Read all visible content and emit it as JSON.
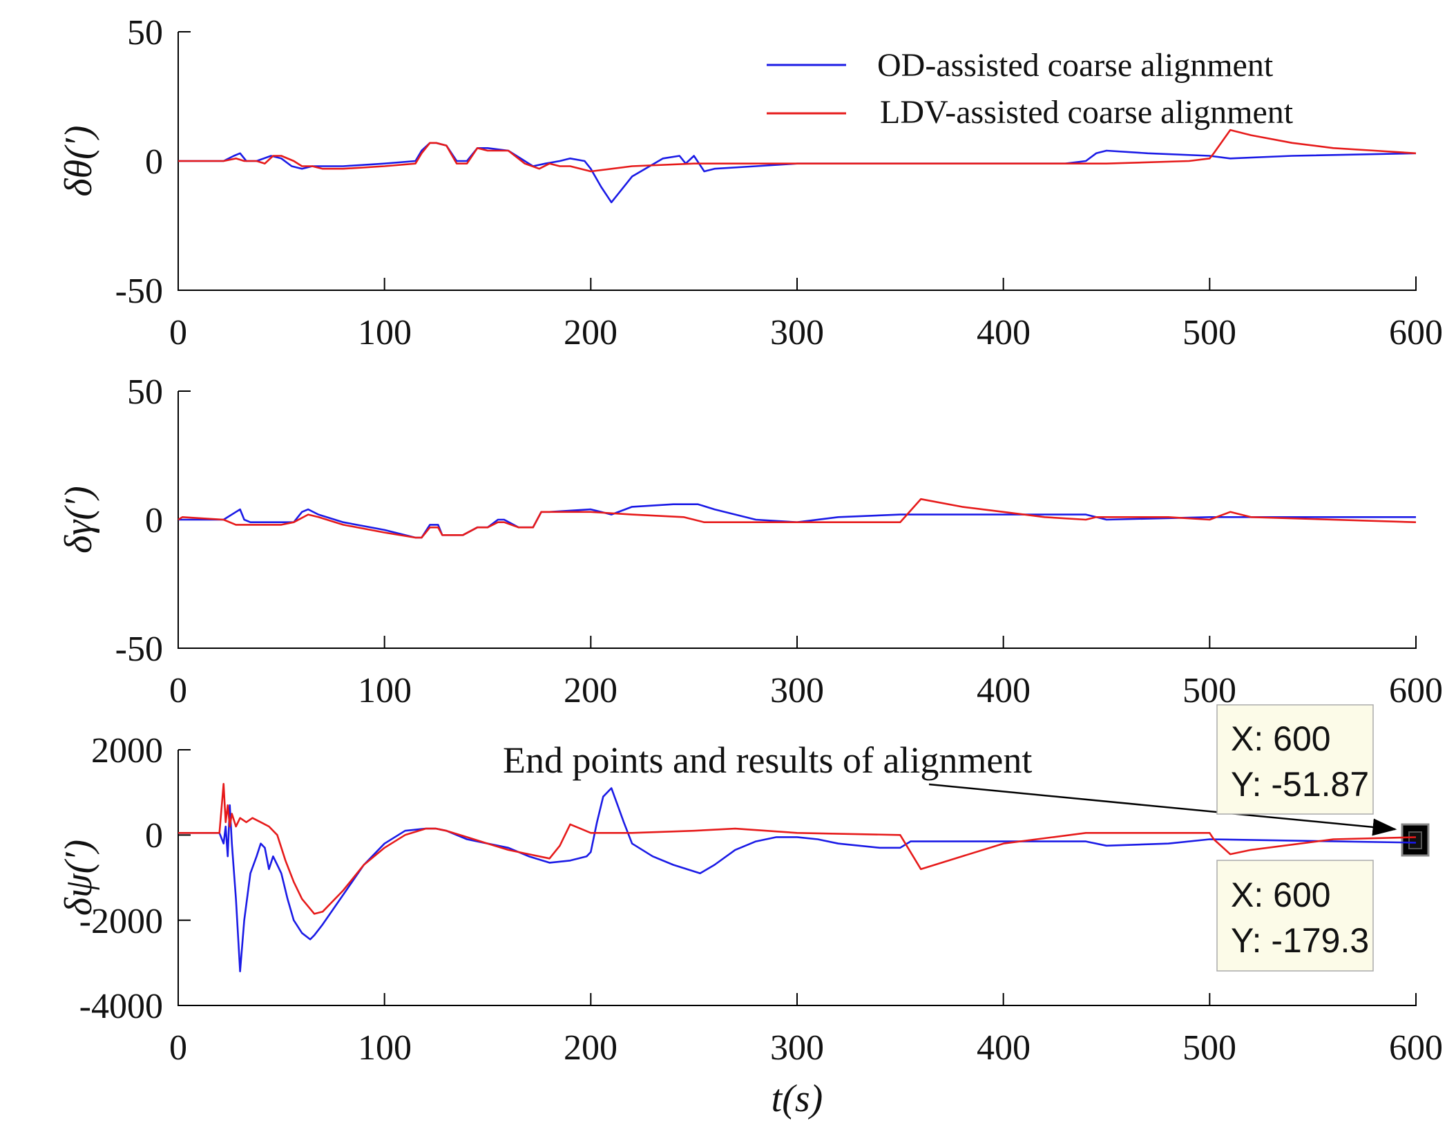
{
  "chart_data": [
    {
      "type": "line",
      "ylabel": "δθ(′)",
      "xlabel": "",
      "xlim": [
        0,
        600
      ],
      "ylim": [
        -50,
        50
      ],
      "xticks": [
        "0",
        "100",
        "200",
        "300",
        "400",
        "500",
        "600"
      ],
      "yticks": [
        "-50",
        "0",
        "50"
      ],
      "ytick_values": [
        -50,
        0,
        50
      ],
      "legend": {
        "position": "top-right",
        "entries": [
          "OD-assisted coarse alignment",
          "LDV-assisted coarse alignment"
        ]
      },
      "series": [
        {
          "name": "OD-assisted coarse alignment",
          "color": "#1a1ae6",
          "x": [
            0,
            22,
            27,
            30,
            33,
            38,
            45,
            50,
            55,
            60,
            65,
            70,
            80,
            100,
            115,
            118,
            122,
            125,
            130,
            135,
            140,
            145,
            150,
            160,
            168,
            172,
            178,
            185,
            190,
            197,
            200,
            205,
            210,
            220,
            235,
            243,
            246,
            250,
            255,
            260,
            280,
            300,
            320,
            350,
            380,
            400,
            430,
            440,
            445,
            450,
            470,
            500,
            510,
            540,
            600
          ],
          "y": [
            0,
            0,
            2,
            3,
            0,
            0,
            2,
            1,
            -2,
            -3,
            -2,
            -2,
            -2,
            -1,
            0,
            4,
            7,
            7,
            6,
            0,
            0,
            5,
            5,
            4,
            0,
            -2,
            -1,
            0,
            1,
            0,
            -3,
            -10,
            -16,
            -6,
            1,
            2,
            -1,
            2,
            -4,
            -3,
            -2,
            -1,
            -1,
            -1,
            -1,
            -1,
            -1,
            0,
            3,
            4,
            3,
            2,
            1,
            2,
            3
          ]
        },
        {
          "name": "LDV-assisted coarse alignment",
          "color": "#e61a1a",
          "x": [
            0,
            22,
            28,
            32,
            38,
            42,
            46,
            50,
            56,
            60,
            65,
            70,
            80,
            100,
            115,
            118,
            122,
            125,
            130,
            135,
            140,
            145,
            150,
            160,
            168,
            175,
            180,
            185,
            190,
            195,
            200,
            220,
            250,
            300,
            350,
            400,
            450,
            490,
            500,
            502,
            510,
            520,
            540,
            560,
            580,
            600
          ],
          "y": [
            0,
            0,
            1,
            0,
            0,
            -1,
            2,
            2,
            0,
            -2,
            -2,
            -3,
            -3,
            -2,
            -1,
            3,
            7,
            7,
            6,
            -1,
            -1,
            5,
            4,
            4,
            -1,
            -3,
            -1,
            -2,
            -2,
            -3,
            -4,
            -2,
            -1,
            -1,
            -1,
            -1,
            -1,
            0,
            1,
            3,
            12,
            10,
            7,
            5,
            4,
            3
          ]
        }
      ]
    },
    {
      "type": "line",
      "ylabel": "δγ(′)",
      "xlabel": "",
      "xlim": [
        0,
        600
      ],
      "ylim": [
        -50,
        50
      ],
      "xticks": [
        "0",
        "100",
        "200",
        "300",
        "400",
        "500",
        "600"
      ],
      "yticks": [
        "-50",
        "0",
        "50"
      ],
      "ytick_values": [
        -50,
        0,
        50
      ],
      "series": [
        {
          "name": "OD-assisted coarse alignment",
          "color": "#1a1ae6",
          "x": [
            0,
            22,
            28,
            30,
            32,
            35,
            45,
            56,
            60,
            63,
            68,
            80,
            100,
            115,
            118,
            122,
            126,
            128,
            132,
            138,
            145,
            150,
            155,
            158,
            165,
            172,
            176,
            180,
            200,
            205,
            210,
            220,
            240,
            252,
            260,
            280,
            300,
            320,
            350,
            380,
            400,
            440,
            445,
            450,
            500,
            600
          ],
          "y": [
            0,
            0,
            3,
            4,
            0,
            -1,
            -1,
            -1,
            3,
            4,
            2,
            -1,
            -4,
            -7,
            -7,
            -2,
            -2,
            -6,
            -6,
            -6,
            -3,
            -3,
            0,
            0,
            -3,
            -3,
            3,
            3,
            4,
            3,
            2,
            5,
            6,
            6,
            4,
            0,
            -1,
            1,
            2,
            2,
            2,
            2,
            1,
            0,
            1,
            1
          ]
        },
        {
          "name": "LDV-assisted coarse alignment",
          "color": "#e61a1a",
          "x": [
            0,
            2,
            22,
            28,
            35,
            50,
            56,
            63,
            68,
            80,
            100,
            115,
            118,
            122,
            126,
            128,
            132,
            138,
            145,
            150,
            155,
            158,
            165,
            172,
            176,
            180,
            200,
            220,
            245,
            255,
            300,
            350,
            360,
            380,
            400,
            420,
            440,
            445,
            480,
            500,
            510,
            520,
            600
          ],
          "y": [
            0,
            1,
            0,
            -2,
            -2,
            -2,
            -1,
            2,
            1,
            -2,
            -5,
            -7,
            -7,
            -3,
            -3,
            -6,
            -6,
            -6,
            -3,
            -3,
            -1,
            -1,
            -3,
            -3,
            3,
            3,
            3,
            2,
            1,
            -1,
            -1,
            -1,
            8,
            5,
            3,
            1,
            0,
            1,
            1,
            0,
            3,
            1,
            -1
          ]
        }
      ]
    },
    {
      "type": "line",
      "ylabel": "δψ(′)",
      "xlabel": "t(s)",
      "xlim": [
        0,
        600
      ],
      "ylim": [
        -4000,
        2000
      ],
      "xticks": [
        "0",
        "100",
        "200",
        "300",
        "400",
        "500",
        "600"
      ],
      "yticks": [
        "-4000",
        "-2000",
        "0",
        "2000"
      ],
      "ytick_values": [
        -4000,
        -2000,
        0,
        2000
      ],
      "annotation": "End points and results of alignment",
      "datatips": [
        {
          "x_label": "X: 600",
          "y_label": "Y: -51.87",
          "x": 600,
          "y": -51.87
        },
        {
          "x_label": "X: 600",
          "y_label": "Y: -179.3",
          "x": 600,
          "y": -179.3
        }
      ],
      "series": [
        {
          "name": "OD-assisted coarse alignment",
          "color": "#1a1ae6",
          "x": [
            0,
            20,
            22,
            23,
            24,
            25,
            26,
            28,
            30,
            32,
            35,
            38,
            40,
            42,
            44,
            46,
            48,
            50,
            53,
            56,
            60,
            64,
            66,
            70,
            80,
            90,
            100,
            110,
            120,
            125,
            130,
            140,
            150,
            160,
            170,
            180,
            190,
            198,
            200,
            203,
            206,
            210,
            213,
            216,
            220,
            230,
            240,
            253,
            260,
            270,
            280,
            290,
            300,
            310,
            320,
            340,
            350,
            355,
            360,
            400,
            440,
            450,
            480,
            500,
            600
          ],
          "y": [
            50,
            50,
            -200,
            200,
            -500,
            700,
            -200,
            -1500,
            -3200,
            -2000,
            -900,
            -500,
            -200,
            -300,
            -800,
            -500,
            -700,
            -900,
            -1500,
            -2000,
            -2300,
            -2450,
            -2350,
            -2100,
            -1400,
            -700,
            -200,
            100,
            150,
            150,
            100,
            -100,
            -200,
            -300,
            -500,
            -650,
            -600,
            -500,
            -400,
            300,
            900,
            1100,
            700,
            300,
            -200,
            -500,
            -700,
            -900,
            -700,
            -350,
            -150,
            -50,
            -50,
            -100,
            -200,
            -300,
            -300,
            -150,
            -150,
            -150,
            -150,
            -250,
            -200,
            -100,
            -179.3
          ]
        },
        {
          "name": "LDV-assisted coarse alignment",
          "color": "#e61a1a",
          "x": [
            0,
            20,
            22,
            23,
            24,
            25,
            26,
            28,
            30,
            33,
            36,
            40,
            44,
            48,
            52,
            56,
            60,
            66,
            70,
            80,
            90,
            100,
            110,
            120,
            125,
            130,
            140,
            150,
            160,
            170,
            180,
            185,
            190,
            195,
            200,
            220,
            250,
            270,
            300,
            350,
            360,
            400,
            440,
            500,
            502,
            510,
            520,
            560,
            600
          ],
          "y": [
            50,
            50,
            1200,
            300,
            700,
            200,
            500,
            200,
            400,
            300,
            400,
            300,
            200,
            0,
            -600,
            -1100,
            -1500,
            -1850,
            -1800,
            -1300,
            -700,
            -300,
            0,
            150,
            150,
            100,
            -50,
            -200,
            -350,
            -450,
            -550,
            -250,
            250,
            150,
            50,
            50,
            100,
            150,
            50,
            0,
            -800,
            -200,
            50,
            50,
            -100,
            -450,
            -350,
            -100,
            -51.87
          ]
        }
      ]
    }
  ]
}
